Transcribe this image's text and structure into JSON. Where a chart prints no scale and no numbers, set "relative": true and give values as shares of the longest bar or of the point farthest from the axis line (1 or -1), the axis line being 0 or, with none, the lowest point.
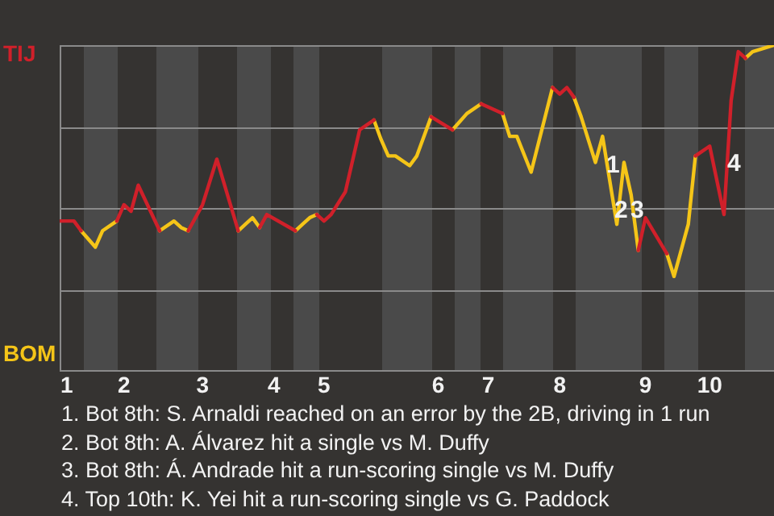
{
  "chart_data": {
    "type": "line",
    "relative": true,
    "grid": "y",
    "marker": "none",
    "legend": false,
    "categories": [
      null,
      "1",
      null,
      null,
      null,
      null,
      null,
      null,
      null,
      "2",
      null,
      null,
      null,
      null,
      null,
      null,
      null,
      null,
      null,
      null,
      "3",
      null,
      null,
      null,
      null,
      null,
      null,
      null,
      null,
      null,
      "4",
      null,
      null,
      null,
      null,
      null,
      null,
      "5",
      null,
      null,
      null,
      null,
      null,
      null,
      null,
      null,
      null,
      null,
      null,
      null,
      null,
      null,
      null,
      "6",
      null,
      null,
      null,
      null,
      null,
      null,
      "7",
      null,
      null,
      null,
      null,
      null,
      null,
      null,
      null,
      null,
      "8",
      null,
      null,
      null,
      null,
      null,
      null,
      null,
      null,
      null,
      null,
      null,
      "9",
      null,
      null,
      null,
      null,
      null,
      null,
      null,
      null,
      "10",
      null,
      null,
      null,
      null,
      null,
      null,
      null,
      null,
      null
    ],
    "series": [
      {
        "color": "#d0202a",
        "values": [
          0.46,
          null,
          0.46,
          0.43,
          null,
          null,
          null,
          null,
          0.46,
          0.51,
          0.49,
          0.57,
          null,
          null,
          0.43,
          null,
          null,
          null,
          0.43,
          0.47,
          0.51,
          null,
          0.65,
          null,
          null,
          0.43,
          null,
          null,
          0.44,
          0.48,
          null,
          null,
          null,
          0.43,
          null,
          null,
          0.48,
          0.46,
          0.48,
          null,
          0.55,
          null,
          0.74,
          null,
          0.77,
          null,
          null,
          null,
          null,
          null,
          null,
          null,
          0.78,
          null,
          null,
          0.74,
          null,
          null,
          null,
          0.82,
          null,
          null,
          0.79,
          null,
          null,
          null,
          null,
          null,
          null,
          0.87,
          0.85,
          0.87,
          0.84,
          null,
          null,
          null,
          null,
          null,
          null,
          null,
          null,
          0.37,
          0.47,
          null,
          null,
          0.36,
          null,
          null,
          null,
          0.66,
          null,
          0.69,
          null,
          0.48,
          0.83,
          0.98,
          0.96,
          null,
          null,
          null,
          null
        ]
      },
      {
        "color": "#f5c518",
        "values": [
          null,
          null,
          null,
          0.43,
          null,
          0.38,
          0.43,
          null,
          0.46,
          null,
          null,
          null,
          null,
          null,
          0.43,
          null,
          0.46,
          0.44,
          0.43,
          null,
          null,
          null,
          null,
          null,
          null,
          0.43,
          0.45,
          0.47,
          0.44,
          null,
          null,
          null,
          null,
          0.43,
          0.45,
          0.47,
          0.48,
          null,
          null,
          null,
          null,
          null,
          null,
          null,
          0.77,
          0.71,
          0.66,
          0.66,
          null,
          0.63,
          0.66,
          null,
          0.78,
          null,
          null,
          0.74,
          null,
          0.79,
          null,
          0.82,
          null,
          null,
          0.79,
          0.72,
          0.72,
          null,
          0.61,
          null,
          null,
          0.87,
          null,
          null,
          0.84,
          0.78,
          null,
          0.64,
          0.72,
          null,
          0.45,
          0.64,
          0.54,
          0.37,
          null,
          null,
          null,
          0.36,
          0.29,
          null,
          0.45,
          0.66,
          null,
          null,
          null,
          null,
          null,
          null,
          0.96,
          0.98,
          null,
          null,
          1
        ]
      }
    ],
    "annotations": [
      "TIJ",
      "BOM",
      "1",
      "2",
      "3",
      "4",
      "1. Bot 8th: S. Arnaldi reached on an error by the 2B, driving in 1 run",
      "2. Bot 8th: A. Álvarez hit a single vs M. Duffy",
      "3. Bot 8th: Á. Andrade hit a run-scoring single vs M. Duffy",
      "4. Top 10th: K. Yei hit a run-scoring single vs G. Paddock"
    ]
  }
}
